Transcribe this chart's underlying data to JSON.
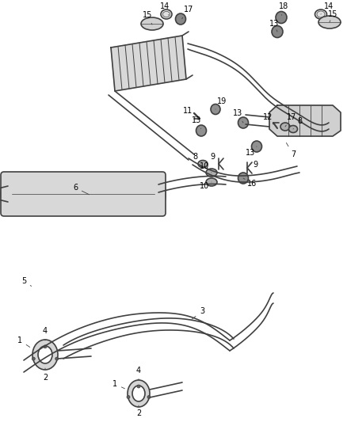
{
  "bg_color": "#ffffff",
  "line_color": "#404040",
  "label_color": "#000000",
  "lw_main": 1.2,
  "lw_thin": 0.7,
  "label_fs": 7.0
}
